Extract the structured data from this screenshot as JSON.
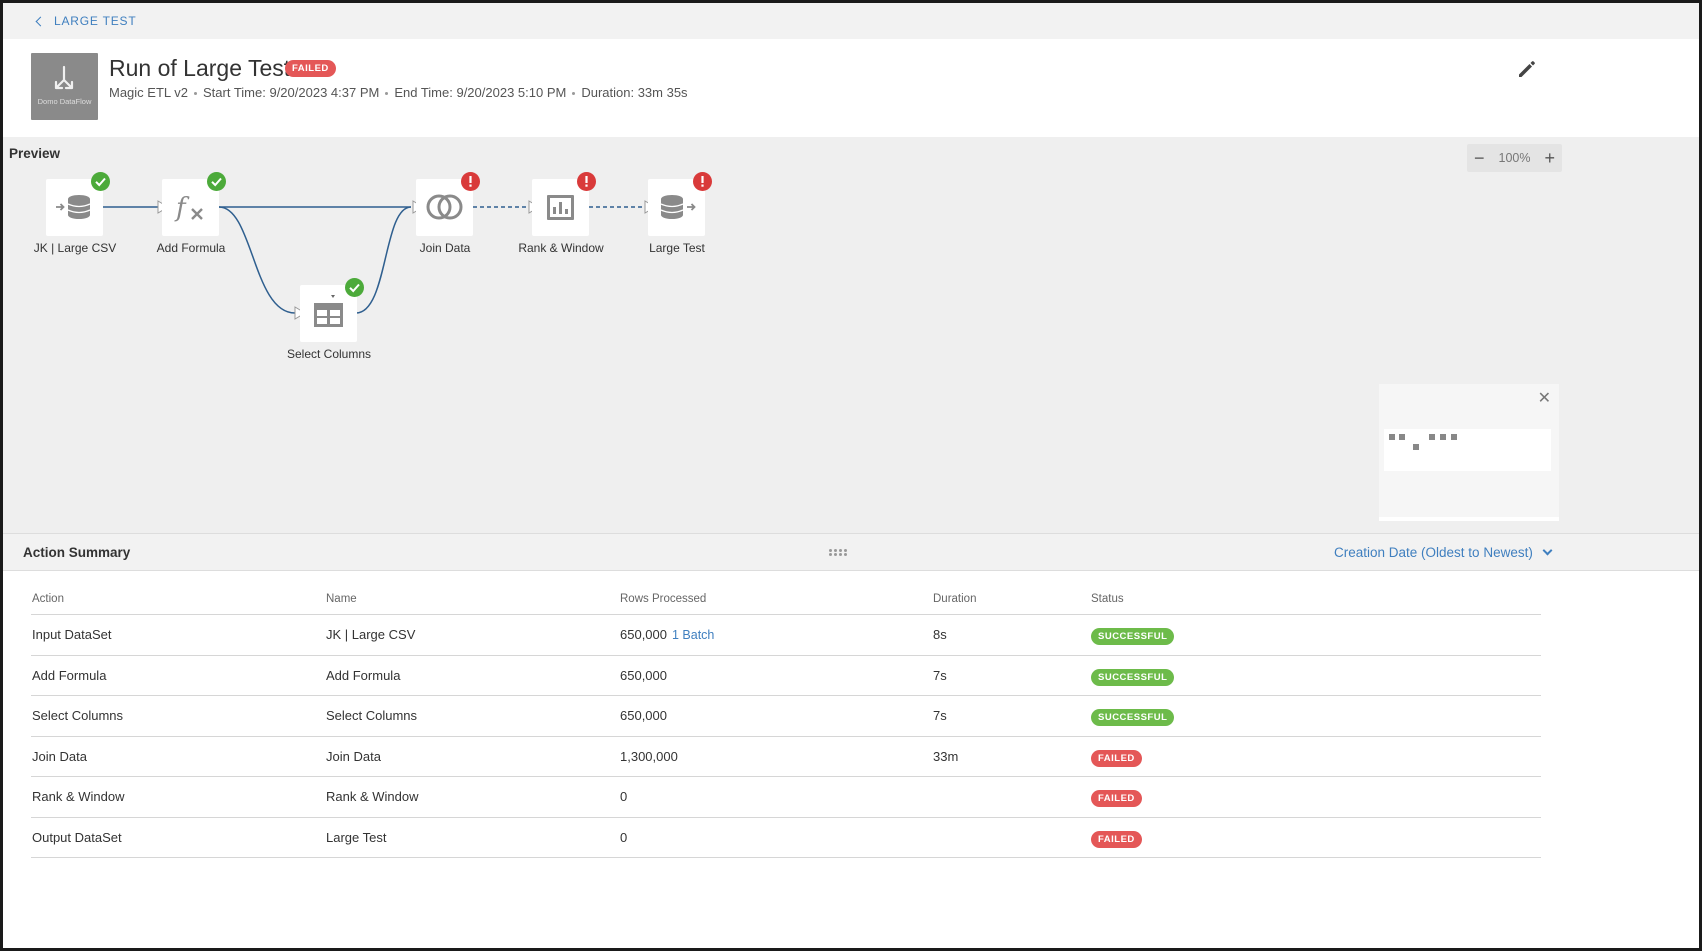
{
  "nav": {
    "back_label": "LARGE TEST"
  },
  "header": {
    "title": "Run of Large Test",
    "status": "FAILED",
    "logo_text": "Domo DataFlow",
    "meta": [
      "Magic ETL v2",
      "Start Time: 9/20/2023 4:37 PM",
      "End Time: 9/20/2023 5:10 PM",
      "Duration: 33m 35s"
    ]
  },
  "preview": {
    "label": "Preview",
    "zoom": "100%",
    "nodes": [
      {
        "label": "JK | Large CSV",
        "status": "success",
        "icon": "input-dataset-icon"
      },
      {
        "label": "Add Formula",
        "status": "success",
        "icon": "formula-icon"
      },
      {
        "label": "Select Columns",
        "status": "success",
        "icon": "select-columns-icon"
      },
      {
        "label": "Join Data",
        "status": "error",
        "icon": "join-icon"
      },
      {
        "label": "Rank & Window",
        "status": "error",
        "icon": "rank-window-icon"
      },
      {
        "label": "Large Test",
        "status": "error",
        "icon": "output-dataset-icon"
      }
    ]
  },
  "summary": {
    "title": "Action Summary",
    "sort_label": "Creation Date (Oldest to Newest)",
    "columns": [
      "Action",
      "Name",
      "Rows Processed",
      "Duration",
      "Status"
    ],
    "rows": [
      {
        "action": "Input DataSet",
        "name": "JK | Large CSV",
        "rows": "650,000",
        "batch": "1 Batch",
        "duration": "8s",
        "status": "SUCCESSFUL"
      },
      {
        "action": "Add Formula",
        "name": "Add Formula",
        "rows": "650,000",
        "duration": "7s",
        "status": "SUCCESSFUL"
      },
      {
        "action": "Select Columns",
        "name": "Select Columns",
        "rows": "650,000",
        "duration": "7s",
        "status": "SUCCESSFUL"
      },
      {
        "action": "Join Data",
        "name": "Join Data",
        "rows": "1,300,000",
        "duration": "33m",
        "status": "FAILED"
      },
      {
        "action": "Rank & Window",
        "name": "Rank & Window",
        "rows": "0",
        "duration": "",
        "status": "FAILED"
      },
      {
        "action": "Output DataSet",
        "name": "Large Test",
        "rows": "0",
        "duration": "",
        "status": "FAILED"
      }
    ]
  },
  "colors": {
    "accent": "#3f7fbf",
    "success": "#6dbb4a",
    "failed": "#e45757",
    "edge": "#2f5f8f"
  }
}
